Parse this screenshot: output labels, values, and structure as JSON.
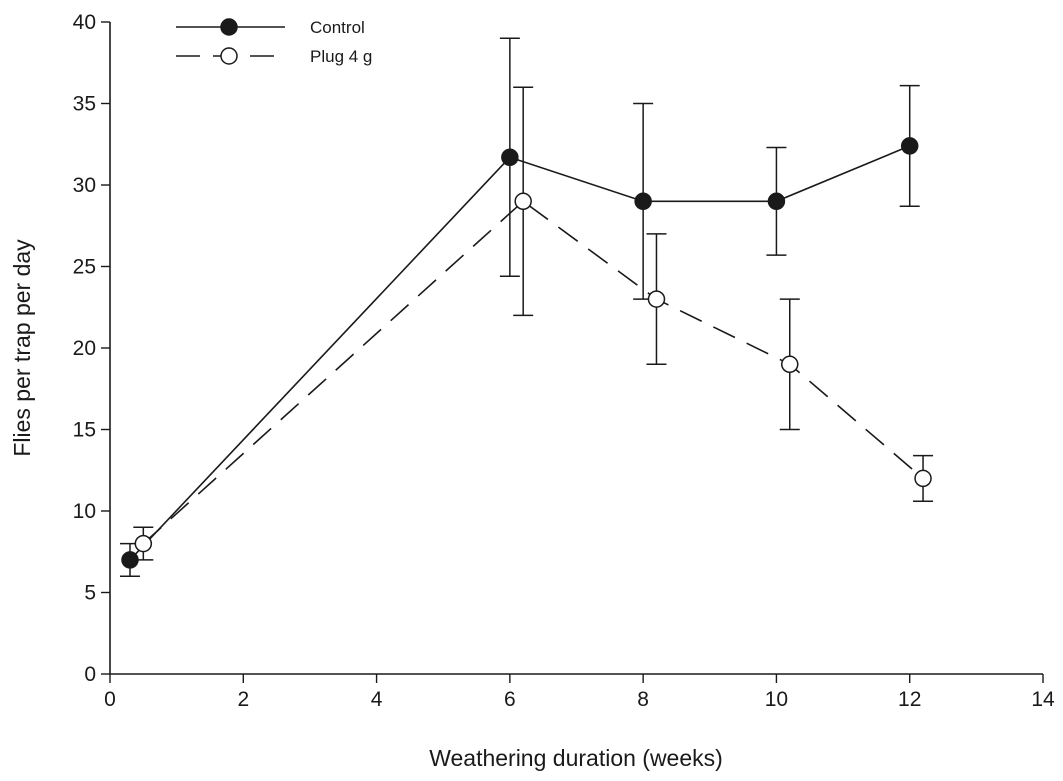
{
  "chart_data": {
    "type": "line",
    "xlabel": "Weathering duration (weeks)",
    "ylabel": "Flies per trap per day",
    "xlim": [
      0,
      14
    ],
    "ylim": [
      0,
      40
    ],
    "xticks": [
      "0",
      "2",
      "4",
      "6",
      "8",
      "10",
      "12",
      "14"
    ],
    "yticks": [
      "0",
      "5",
      "10",
      "15",
      "20",
      "25",
      "30",
      "35",
      "40"
    ],
    "grid": false,
    "legend_position": "top-left",
    "series": [
      {
        "name": "Control",
        "marker": "filled-circle",
        "line": "solid",
        "color": "#1a1a1a",
        "points": [
          {
            "x": 0.3,
            "y": 7.0,
            "err_low": 6.0,
            "err_high": 8.0
          },
          {
            "x": 6.0,
            "y": 31.7,
            "err_low": 24.4,
            "err_high": 39.0
          },
          {
            "x": 8.0,
            "y": 29.0,
            "err_low": 23.0,
            "err_high": 35.0
          },
          {
            "x": 10.0,
            "y": 29.0,
            "err_low": 25.7,
            "err_high": 32.3
          },
          {
            "x": 12.0,
            "y": 32.4,
            "err_low": 28.7,
            "err_high": 36.1
          }
        ]
      },
      {
        "name": "Plug 4 g",
        "marker": "open-circle",
        "line": "dashed",
        "color": "#1a1a1a",
        "points": [
          {
            "x": 0.5,
            "y": 8.0,
            "err_low": 7.0,
            "err_high": 9.0
          },
          {
            "x": 6.2,
            "y": 29.0,
            "err_low": 22.0,
            "err_high": 36.0
          },
          {
            "x": 8.2,
            "y": 23.0,
            "err_low": 19.0,
            "err_high": 27.0
          },
          {
            "x": 10.2,
            "y": 19.0,
            "err_low": 15.0,
            "err_high": 23.0
          },
          {
            "x": 12.2,
            "y": 12.0,
            "err_low": 10.6,
            "err_high": 13.4
          }
        ]
      }
    ]
  }
}
